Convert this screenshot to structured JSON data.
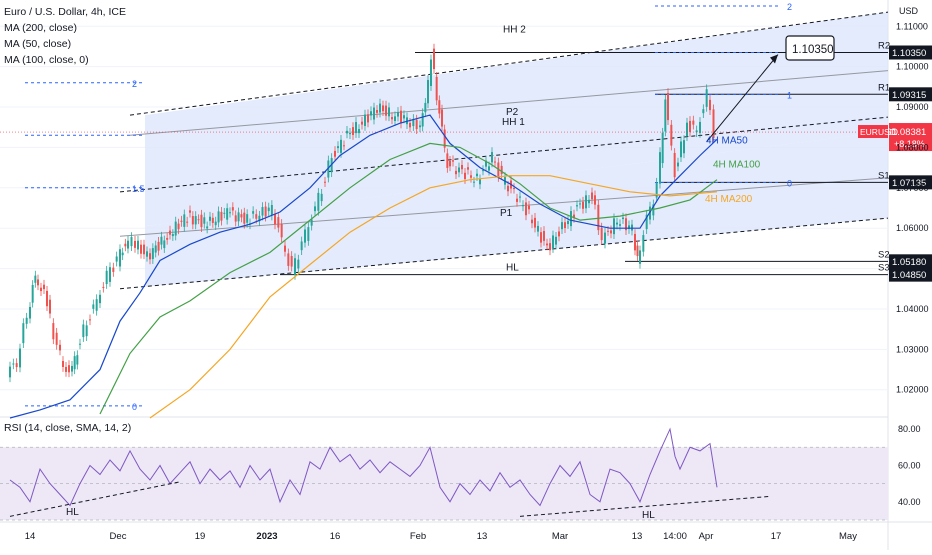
{
  "legend": {
    "symbol": "Euro / U.S. Dollar, 4h, ICE",
    "ma200": "MA (200, close)",
    "ma50": "MA (50, close)",
    "ma100": "MA (100, close, 0)",
    "rsi": "RSI (14, close, SMA, 14, 2)"
  },
  "colors": {
    "ma50": "#1848cc",
    "ma100": "#43a047",
    "ma200": "#f5a623",
    "channel_fill": "#dde6fb",
    "rsi_line": "#7e57c2",
    "rsi_band": "#ede7f6",
    "ticker_red": "#f23645",
    "fib_blue": "#2962ff"
  },
  "chart_data": {
    "type": "line",
    "title": "Euro / U.S. Dollar, 4h, ICE",
    "currency": "USD",
    "ylim": [
      1.0135,
      1.1165
    ],
    "y_ticks": [
      1.02,
      1.03,
      1.04,
      1.05,
      1.06,
      1.07,
      1.08,
      1.09,
      1.1,
      1.11
    ],
    "y_tick_labels": [
      "1.02000",
      "1.03000",
      "1.04000",
      "1.05000",
      "1.06000",
      "1.07000",
      "1.08000",
      "1.09000",
      "1.10000",
      "1.11000"
    ],
    "x_ticks": [
      "14",
      "Dec",
      "19",
      "2023",
      "16",
      "Feb",
      "13",
      "Mar",
      "13",
      "14:00",
      "Apr",
      "17",
      "May"
    ],
    "series": [
      {
        "name": "EURUSD",
        "approx_path": [
          [
            0,
            1.024
          ],
          [
            10,
            1.027
          ],
          [
            20,
            1.039
          ],
          [
            28,
            1.048
          ],
          [
            40,
            1.042
          ],
          [
            50,
            1.03
          ],
          [
            62,
            1.023
          ],
          [
            70,
            1.03
          ],
          [
            80,
            1.037
          ],
          [
            90,
            1.042
          ],
          [
            100,
            1.048
          ],
          [
            110,
            1.052
          ],
          [
            118,
            1.056
          ],
          [
            125,
            1.057
          ],
          [
            140,
            1.053
          ],
          [
            160,
            1.058
          ],
          [
            180,
            1.063
          ],
          [
            200,
            1.061
          ],
          [
            220,
            1.064
          ],
          [
            240,
            1.062
          ],
          [
            265,
            1.065
          ],
          [
            275,
            1.057
          ],
          [
            285,
            1.049
          ],
          [
            295,
            1.056
          ],
          [
            305,
            1.063
          ],
          [
            315,
            1.07
          ],
          [
            325,
            1.078
          ],
          [
            340,
            1.083
          ],
          [
            355,
            1.086
          ],
          [
            370,
            1.09
          ],
          [
            385,
            1.088
          ],
          [
            400,
            1.087
          ],
          [
            410,
            1.085
          ],
          [
            418,
            1.09
          ],
          [
            424,
            1.103
          ],
          [
            432,
            1.088
          ],
          [
            440,
            1.076
          ],
          [
            455,
            1.074
          ],
          [
            470,
            1.072
          ],
          [
            485,
            1.078
          ],
          [
            495,
            1.072
          ],
          [
            510,
            1.068
          ],
          [
            525,
            1.062
          ],
          [
            540,
            1.055
          ],
          [
            555,
            1.06
          ],
          [
            570,
            1.065
          ],
          [
            585,
            1.068
          ],
          [
            595,
            1.057
          ],
          [
            610,
            1.062
          ],
          [
            625,
            1.06
          ],
          [
            630,
            1.052
          ],
          [
            640,
            1.062
          ],
          [
            650,
            1.07
          ],
          [
            658,
            1.092
          ],
          [
            668,
            1.074
          ],
          [
            680,
            1.086
          ],
          [
            690,
            1.084
          ],
          [
            700,
            1.093
          ],
          [
            707,
            1.0838
          ]
        ]
      },
      {
        "name": "4H MA50",
        "approx_path": [
          [
            0,
            1.013
          ],
          [
            30,
            1.015
          ],
          [
            60,
            1.0175
          ],
          [
            90,
            1.025
          ],
          [
            110,
            1.037
          ],
          [
            130,
            1.044
          ],
          [
            150,
            1.052
          ],
          [
            180,
            1.056
          ],
          [
            210,
            1.059
          ],
          [
            240,
            1.061
          ],
          [
            270,
            1.064
          ],
          [
            300,
            1.07
          ],
          [
            330,
            1.078
          ],
          [
            360,
            1.083
          ],
          [
            390,
            1.086
          ],
          [
            420,
            1.088
          ],
          [
            440,
            1.081
          ],
          [
            470,
            1.075
          ],
          [
            500,
            1.071
          ],
          [
            530,
            1.066
          ],
          [
            560,
            1.062
          ],
          [
            600,
            1.06
          ],
          [
            630,
            1.06
          ],
          [
            650,
            1.068
          ],
          [
            670,
            1.073
          ],
          [
            690,
            1.078
          ],
          [
            707,
            1.082
          ]
        ]
      },
      {
        "name": "4H MA100",
        "approx_path": [
          [
            90,
            1.014
          ],
          [
            120,
            1.029
          ],
          [
            150,
            1.038
          ],
          [
            180,
            1.042
          ],
          [
            220,
            1.049
          ],
          [
            260,
            1.054
          ],
          [
            300,
            1.062
          ],
          [
            340,
            1.07
          ],
          [
            380,
            1.077
          ],
          [
            420,
            1.081
          ],
          [
            450,
            1.08
          ],
          [
            480,
            1.076
          ],
          [
            510,
            1.071
          ],
          [
            540,
            1.065
          ],
          [
            570,
            1.062
          ],
          [
            610,
            1.063
          ],
          [
            650,
            1.065
          ],
          [
            680,
            1.067
          ],
          [
            707,
            1.072
          ]
        ]
      },
      {
        "name": "4H MA200",
        "approx_path": [
          [
            140,
            1.013
          ],
          [
            180,
            1.02
          ],
          [
            220,
            1.03
          ],
          [
            260,
            1.043
          ],
          [
            300,
            1.051
          ],
          [
            340,
            1.059
          ],
          [
            380,
            1.065
          ],
          [
            420,
            1.07
          ],
          [
            460,
            1.072
          ],
          [
            500,
            1.073
          ],
          [
            540,
            1.073
          ],
          [
            580,
            1.071
          ],
          [
            620,
            1.069
          ],
          [
            660,
            1.068
          ],
          [
            707,
            1.069
          ]
        ]
      }
    ],
    "annotations": [
      {
        "text": "HH 2",
        "price": 1.108
      },
      {
        "text": "HH 1",
        "price": 1.086
      },
      {
        "text": "P2",
        "price": 1.088
      },
      {
        "text": "P1",
        "price": 1.064
      },
      {
        "text": "HL",
        "price": 1.0505
      },
      {
        "text": "4H MA50",
        "price": 1.082
      },
      {
        "text": "4H MA100",
        "price": 1.075
      },
      {
        "text": "4H MA200",
        "price": 1.0665
      },
      {
        "text": "1.10350",
        "price": 1.12
      }
    ],
    "levels": [
      {
        "label": "R2",
        "price_label": "1.10350",
        "price": 1.1035
      },
      {
        "label": "R1",
        "price_label": "1.09315",
        "price": 1.09315
      },
      {
        "label": "S1",
        "price_label": "1.07135",
        "price": 1.07135
      },
      {
        "label": "S2",
        "price_label": "1.05180",
        "price": 1.0518
      },
      {
        "label": "S3",
        "price_label": "1.04850",
        "price": 1.0485
      }
    ],
    "current": {
      "symbol": "EURUSD",
      "price_label": "1.08381",
      "change_label": "+8.18%",
      "price": 1.08381
    },
    "fib_labels": {
      "left": [
        "2",
        "1.5",
        "0"
      ],
      "right": [
        "2",
        "1.5",
        "1",
        "0"
      ]
    },
    "rsi": {
      "title": "RSI (14, close, SMA, 14, 2)",
      "ylim": [
        30,
        85
      ],
      "ticks": [
        40,
        60,
        80
      ],
      "tick_labels": [
        "40.00",
        "60.00",
        "80.00"
      ],
      "band": [
        30,
        70
      ],
      "annotations": [
        "HL",
        "HL"
      ],
      "approx_path": [
        [
          0,
          52
        ],
        [
          10,
          48
        ],
        [
          20,
          40
        ],
        [
          30,
          58
        ],
        [
          40,
          50
        ],
        [
          50,
          44
        ],
        [
          60,
          38
        ],
        [
          70,
          50
        ],
        [
          80,
          60
        ],
        [
          90,
          55
        ],
        [
          100,
          63
        ],
        [
          110,
          57
        ],
        [
          120,
          68
        ],
        [
          130,
          58
        ],
        [
          140,
          52
        ],
        [
          150,
          60
        ],
        [
          160,
          50
        ],
        [
          170,
          56
        ],
        [
          180,
          62
        ],
        [
          190,
          50
        ],
        [
          200,
          58
        ],
        [
          210,
          52
        ],
        [
          220,
          57
        ],
        [
          230,
          48
        ],
        [
          240,
          60
        ],
        [
          250,
          52
        ],
        [
          260,
          58
        ],
        [
          270,
          40
        ],
        [
          280,
          52
        ],
        [
          290,
          44
        ],
        [
          300,
          62
        ],
        [
          310,
          58
        ],
        [
          320,
          70
        ],
        [
          330,
          62
        ],
        [
          340,
          66
        ],
        [
          350,
          58
        ],
        [
          360,
          63
        ],
        [
          370,
          56
        ],
        [
          380,
          62
        ],
        [
          390,
          58
        ],
        [
          400,
          54
        ],
        [
          410,
          60
        ],
        [
          420,
          70
        ],
        [
          430,
          48
        ],
        [
          440,
          40
        ],
        [
          450,
          50
        ],
        [
          460,
          44
        ],
        [
          470,
          52
        ],
        [
          480,
          46
        ],
        [
          490,
          56
        ],
        [
          500,
          48
        ],
        [
          510,
          52
        ],
        [
          520,
          44
        ],
        [
          530,
          38
        ],
        [
          540,
          50
        ],
        [
          550,
          60
        ],
        [
          560,
          54
        ],
        [
          570,
          62
        ],
        [
          580,
          44
        ],
        [
          590,
          40
        ],
        [
          600,
          58
        ],
        [
          610,
          56
        ],
        [
          620,
          50
        ],
        [
          630,
          40
        ],
        [
          640,
          55
        ],
        [
          650,
          68
        ],
        [
          660,
          80
        ],
        [
          665,
          65
        ],
        [
          670,
          58
        ],
        [
          680,
          70
        ],
        [
          690,
          68
        ],
        [
          700,
          72
        ],
        [
          707,
          48
        ]
      ]
    }
  }
}
